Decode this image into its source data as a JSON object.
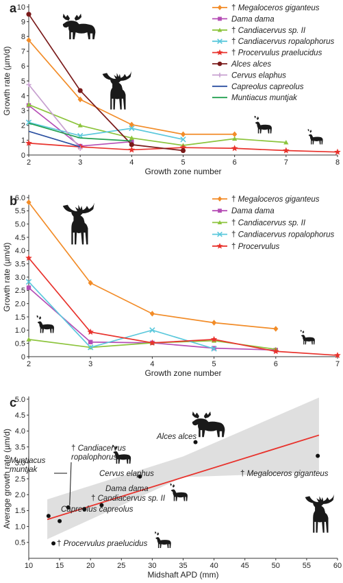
{
  "chart_data": [
    {
      "panel": "a",
      "type": "line",
      "xlabel": "Growth zone number",
      "ylabel": "Growth rate (µm/d)",
      "xlim": [
        2,
        8
      ],
      "ylim": [
        0,
        10
      ],
      "xticks": [
        2,
        3,
        4,
        5,
        6,
        7,
        8
      ],
      "yticks": [
        0,
        1,
        2,
        3,
        4,
        5,
        6,
        7,
        8,
        9,
        10
      ],
      "legend_position": "top-right",
      "series": [
        {
          "name": "Megaloceros giganteus",
          "extinct": true,
          "color": "#f28c28",
          "marker": "diamond",
          "x": [
            2,
            3,
            4,
            5,
            6
          ],
          "y": [
            7.75,
            3.75,
            2.05,
            1.4,
            1.4
          ]
        },
        {
          "name": "Dama dama",
          "extinct": false,
          "color": "#b54db5",
          "marker": "square",
          "x": [
            2,
            3,
            4
          ],
          "y": [
            3.35,
            0.6,
            0.9
          ]
        },
        {
          "name": "Candiacervus sp. II",
          "extinct": true,
          "color": "#8cc43c",
          "marker": "triangle",
          "x": [
            2,
            3,
            4,
            5,
            6,
            7
          ],
          "y": [
            3.4,
            2.0,
            1.15,
            0.65,
            1.1,
            0.85
          ]
        },
        {
          "name": "Candiacervus ropalophorus",
          "extinct": true,
          "color": "#5bc8dc",
          "marker": "x",
          "x": [
            2,
            3,
            4,
            5
          ],
          "y": [
            2.2,
            1.3,
            1.8,
            1.05
          ]
        },
        {
          "name": "Procervulus praelucidus",
          "extinct": true,
          "color": "#e8322c",
          "marker": "star",
          "x": [
            2,
            3,
            4,
            5,
            6,
            7,
            8
          ],
          "y": [
            0.8,
            0.55,
            0.35,
            0.5,
            0.45,
            0.3,
            0.2
          ]
        },
        {
          "name": "Alces alces",
          "extinct": false,
          "color": "#7a1a1a",
          "marker": "circle",
          "x": [
            2,
            3,
            4,
            5
          ],
          "y": [
            9.5,
            4.35,
            0.7,
            0.3
          ]
        },
        {
          "name": "Cervus elaphus",
          "extinct": false,
          "color": "#c7a0d0",
          "marker": "plus",
          "x": [
            2,
            3
          ],
          "y": [
            4.75,
            0.45
          ]
        },
        {
          "name": "Capreolus capreolus",
          "extinct": false,
          "color": "#2b4fa0",
          "marker": "none",
          "x": [
            2,
            3
          ],
          "y": [
            1.6,
            0.55
          ]
        },
        {
          "name": "Muntiacus muntjak",
          "extinct": false,
          "color": "#22a050",
          "marker": "none",
          "x": [
            2,
            3,
            4
          ],
          "y": [
            2.15,
            1.15,
            0.95
          ]
        }
      ]
    },
    {
      "panel": "b",
      "type": "line",
      "xlabel": "Growth zone number",
      "ylabel": "Growth rate (µm/d)",
      "xlim": [
        2,
        7
      ],
      "ylim": [
        0,
        6.0
      ],
      "xticks": [
        2,
        3,
        4,
        5,
        6,
        7
      ],
      "yticks": [
        "0",
        "0.5",
        "1.0",
        "1.5",
        "2.0",
        "2.5",
        "3.0",
        "3.5",
        "4.0",
        "4.5",
        "5.0",
        "5.5",
        "6.0"
      ],
      "legend_position": "top-right",
      "series": [
        {
          "name": "Megaloceros giganteus",
          "extinct": true,
          "color": "#f28c28",
          "marker": "diamond",
          "x": [
            2,
            3,
            4,
            5,
            6
          ],
          "y": [
            5.82,
            2.78,
            1.62,
            1.28,
            1.05
          ]
        },
        {
          "name": "Dama dama",
          "extinct": false,
          "color": "#b54db5",
          "marker": "square",
          "x": [
            2,
            3,
            4,
            5,
            6
          ],
          "y": [
            2.6,
            0.55,
            0.52,
            0.32,
            0.25
          ]
        },
        {
          "name": "Candiacervus sp. II",
          "extinct": true,
          "color": "#8cc43c",
          "marker": "triangle",
          "x": [
            2,
            3,
            4,
            5,
            6
          ],
          "y": [
            0.65,
            0.35,
            0.52,
            0.6,
            0.28
          ]
        },
        {
          "name": "Candiacervus ropalophorus",
          "extinct": true,
          "color": "#5bc8dc",
          "marker": "x",
          "x": [
            2,
            3,
            4,
            5
          ],
          "y": [
            2.82,
            0.35,
            1.0,
            0.3
          ]
        },
        {
          "name": "Procervulus",
          "extinct": true,
          "color": "#e8322c",
          "marker": "star",
          "x": [
            2,
            3,
            4,
            5,
            6,
            7
          ],
          "y": [
            3.72,
            0.93,
            0.52,
            0.65,
            0.2,
            0.05
          ]
        }
      ]
    },
    {
      "panel": "c",
      "type": "scatter",
      "xlabel": "Midshaft APD (mm)",
      "ylabel": "Average growth rate (µm/d)",
      "xlim": [
        10,
        60
      ],
      "ylim": [
        0,
        5.0
      ],
      "xticks": [
        10,
        15,
        20,
        25,
        30,
        35,
        40,
        45,
        50,
        55,
        60
      ],
      "yticks": [
        "0.5",
        "1.0",
        "1.5",
        "2.0",
        "2.5",
        "3.0",
        "3.5",
        "4.0",
        "4.5",
        "5.0"
      ],
      "regression": {
        "x": [
          13,
          57
        ],
        "y": [
          1.22,
          3.87
        ],
        "color": "#e8322c"
      },
      "confidence_band": {
        "x": [
          13,
          35,
          57
        ],
        "upper": [
          1.85,
          3.2,
          5.05
        ],
        "lower": [
          0.6,
          2.55,
          2.7
        ]
      },
      "points": [
        {
          "label": "Muntiacus muntjak",
          "extinct": false,
          "x": 13.2,
          "y": 1.33
        },
        {
          "label": "Candiacervus ropalophorus",
          "extinct": true,
          "x": 16.4,
          "y": 1.6
        },
        {
          "label": "Candiacervus sp. II",
          "extinct": true,
          "x": 19.0,
          "y": 1.55
        },
        {
          "label": "Dama dama",
          "extinct": false,
          "x": 21.8,
          "y": 1.67
        },
        {
          "label": "Capreolus capreolus",
          "extinct": false,
          "x": 15.0,
          "y": 1.17
        },
        {
          "label": "Procervulus praelucidus",
          "extinct": true,
          "x": 14.0,
          "y": 0.47
        },
        {
          "label": "Cervus elaphus",
          "extinct": false,
          "x": 28.0,
          "y": 2.57
        },
        {
          "label": "Alces alces",
          "extinct": false,
          "x": 37.0,
          "y": 3.65
        },
        {
          "label": "Megaloceros giganteus",
          "extinct": true,
          "x": 56.8,
          "y": 3.22
        }
      ]
    }
  ],
  "panel_labels": [
    "a",
    "b",
    "c"
  ],
  "dagger": "†"
}
